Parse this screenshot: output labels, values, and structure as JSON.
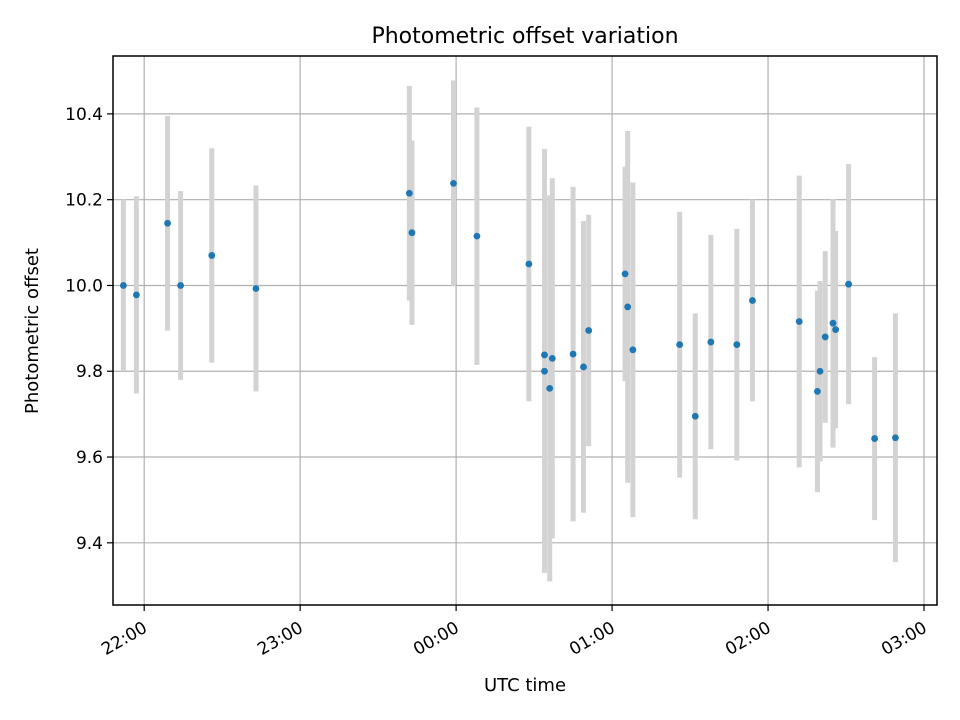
{
  "chart_data": {
    "type": "scatter",
    "title": "Photometric offset variation",
    "xlabel": "UTC time",
    "ylabel": "Photometric offset",
    "x_date": "2020-01-01",
    "xlim": [
      "21:48",
      "03:05"
    ],
    "ylim": [
      9.255,
      10.535
    ],
    "grid": true,
    "x_ticks": [
      "22:00",
      "23:00",
      "00:00",
      "01:00",
      "02:00",
      "03:00"
    ],
    "y_ticks": [
      "9.4",
      "9.6",
      "9.8",
      "10.0",
      "10.2",
      "10.4"
    ],
    "y_tick_values": [
      9.4,
      9.6,
      9.8,
      10.0,
      10.2,
      10.4
    ],
    "marker_color": "#1f77b4",
    "errorbar_color": "#d3d3d3",
    "points": [
      {
        "t": "21:52",
        "y": 10.0,
        "err": 0.2
      },
      {
        "t": "21:57",
        "y": 9.978,
        "err": 0.23
      },
      {
        "t": "22:09",
        "y": 10.145,
        "err": 0.25
      },
      {
        "t": "22:14",
        "y": 10.0,
        "err": 0.22
      },
      {
        "t": "22:26",
        "y": 10.07,
        "err": 0.25
      },
      {
        "t": "22:43",
        "y": 9.993,
        "err": 0.24
      },
      {
        "t": "23:42",
        "y": 10.215,
        "err": 0.25
      },
      {
        "t": "23:43",
        "y": 10.123,
        "err": 0.215
      },
      {
        "t": "23:59",
        "y": 10.238,
        "err": 0.24
      },
      {
        "t": "00:08",
        "y": 10.115,
        "err": 0.3
      },
      {
        "t": "00:28",
        "y": 10.05,
        "err": 0.32
      },
      {
        "t": "00:34",
        "y": 9.838,
        "err": 0.48
      },
      {
        "t": "00:34",
        "y": 9.8,
        "err": 0.47
      },
      {
        "t": "00:36",
        "y": 9.76,
        "err": 0.45
      },
      {
        "t": "00:37",
        "y": 9.83,
        "err": 0.42
      },
      {
        "t": "00:45",
        "y": 9.84,
        "err": 0.39
      },
      {
        "t": "00:49",
        "y": 9.81,
        "err": 0.34
      },
      {
        "t": "00:51",
        "y": 9.895,
        "err": 0.27
      },
      {
        "t": "01:05",
        "y": 10.027,
        "err": 0.25
      },
      {
        "t": "01:06",
        "y": 9.95,
        "err": 0.41
      },
      {
        "t": "01:08",
        "y": 9.85,
        "err": 0.39
      },
      {
        "t": "01:26",
        "y": 9.862,
        "err": 0.31
      },
      {
        "t": "01:32",
        "y": 9.695,
        "err": 0.24
      },
      {
        "t": "01:38",
        "y": 9.868,
        "err": 0.25
      },
      {
        "t": "01:48",
        "y": 9.862,
        "err": 0.27
      },
      {
        "t": "01:54",
        "y": 9.965,
        "err": 0.235
      },
      {
        "t": "02:12",
        "y": 9.916,
        "err": 0.34
      },
      {
        "t": "02:19",
        "y": 9.753,
        "err": 0.235
      },
      {
        "t": "02:20",
        "y": 9.8,
        "err": 0.21
      },
      {
        "t": "02:22",
        "y": 9.88,
        "err": 0.2
      },
      {
        "t": "02:25",
        "y": 9.912,
        "err": 0.29
      },
      {
        "t": "02:26",
        "y": 9.897,
        "err": 0.23
      },
      {
        "t": "02:31",
        "y": 10.003,
        "err": 0.28
      },
      {
        "t": "02:41",
        "y": 9.643,
        "err": 0.19
      },
      {
        "t": "02:49",
        "y": 9.645,
        "err": 0.29
      }
    ]
  }
}
